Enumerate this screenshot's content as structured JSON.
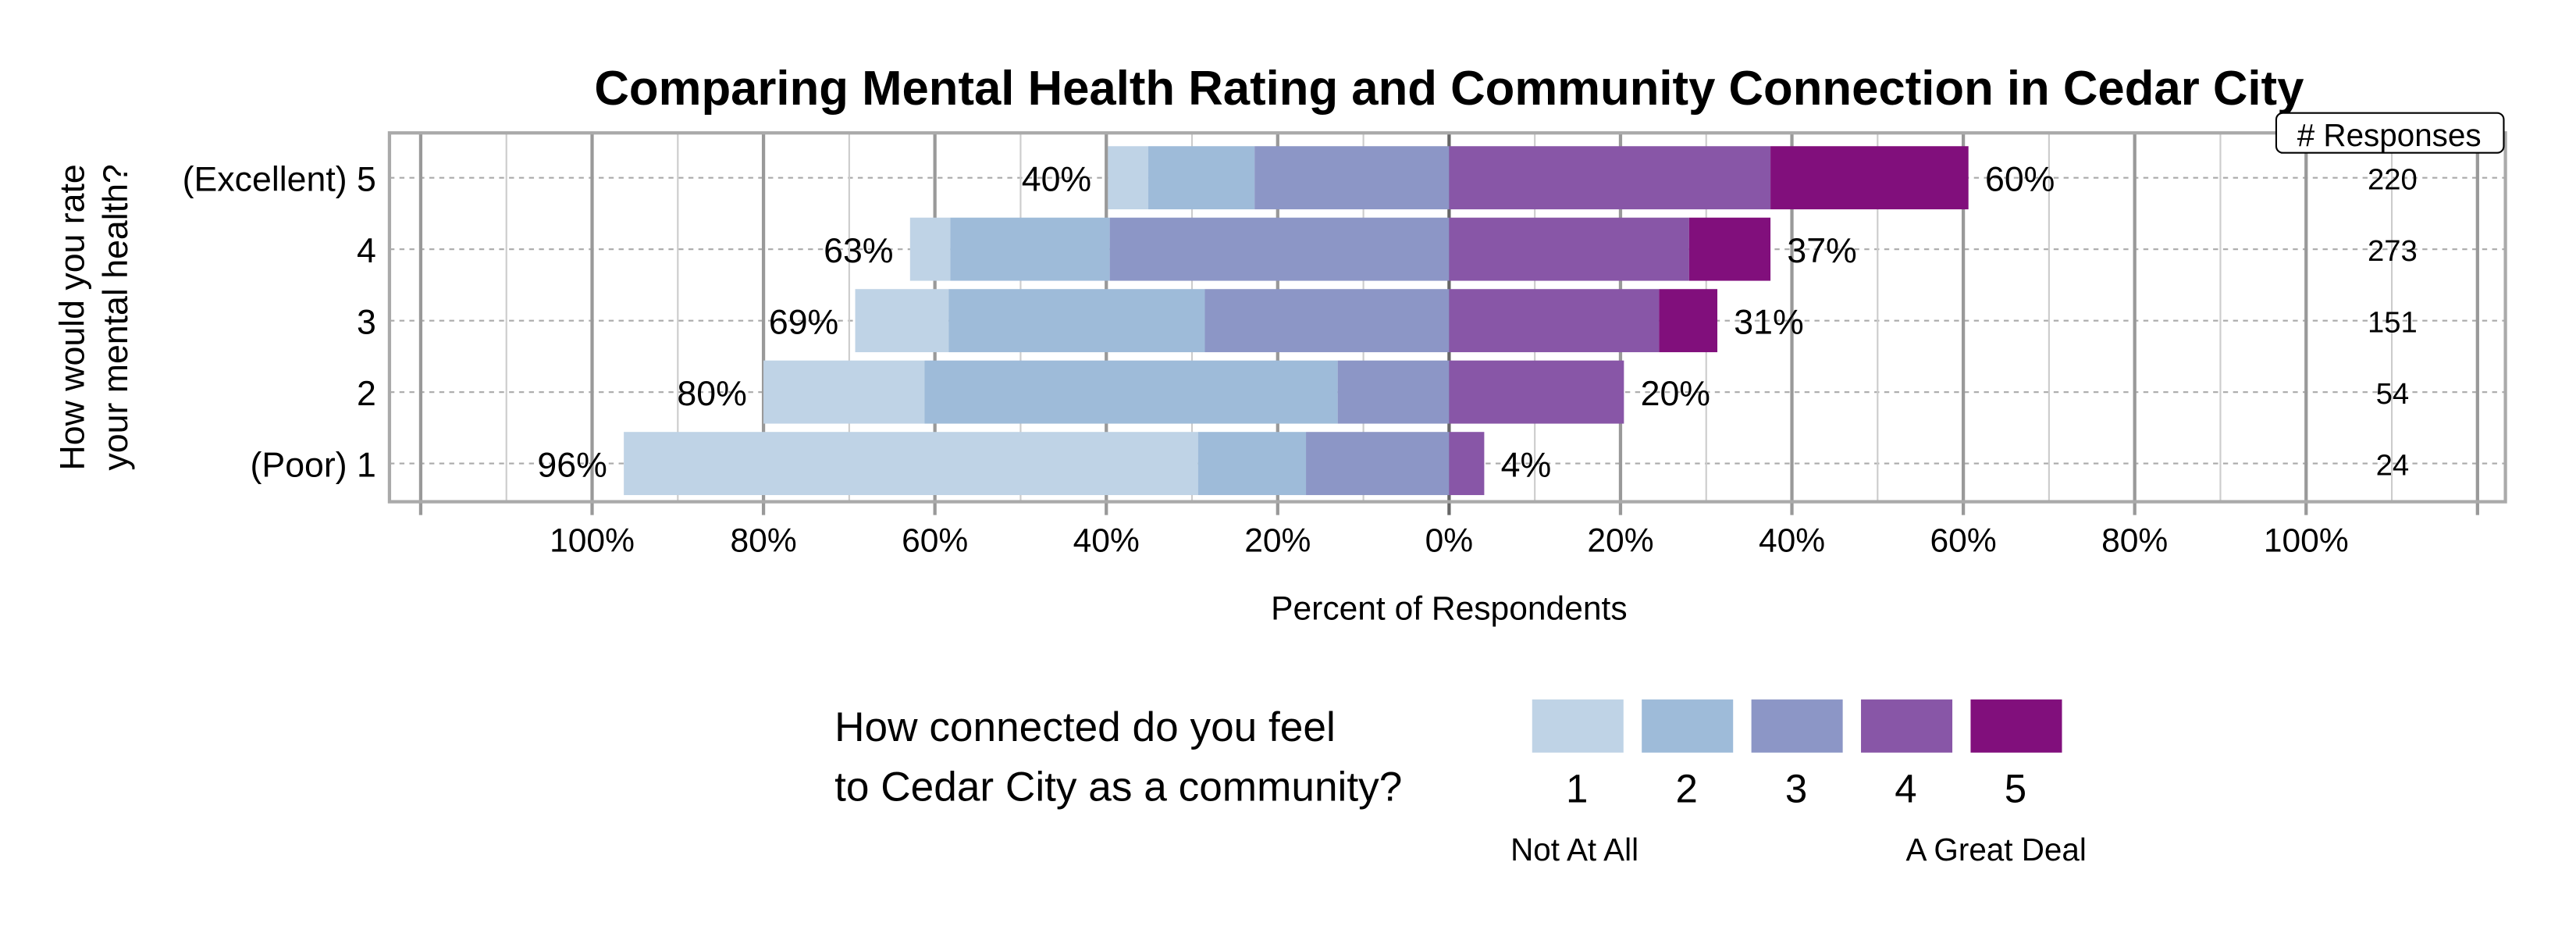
{
  "chart_data": {
    "type": "bar",
    "orientation": "horizontal-diverging-stacked",
    "title": "Comparing Mental Health Rating and Community Connection in Cedar City",
    "xlabel": "Percent of Respondents",
    "ylabel": "How would you rate your mental health?",
    "xlim": [
      -100,
      100
    ],
    "x_ticks": [
      "100%",
      "80%",
      "60%",
      "40%",
      "20%",
      "0%",
      "20%",
      "40%",
      "60%",
      "80%",
      "100%"
    ],
    "grid": true,
    "categories": [
      "(Excellent) 5",
      "4",
      "3",
      "2",
      "(Poor) 1"
    ],
    "series": [
      {
        "name": "1",
        "color": "#bfd3e6",
        "side": "negative",
        "values": [
          4.7,
          4.7,
          10.9,
          18.8,
          67.0
        ]
      },
      {
        "name": "2",
        "color": "#9ebbd9",
        "side": "negative",
        "values": [
          12.4,
          18.6,
          29.9,
          48.2,
          12.6
        ]
      },
      {
        "name": "3",
        "color": "#8c96c6",
        "side": "negative",
        "values": [
          22.7,
          39.6,
          28.5,
          13.0,
          16.7
        ]
      },
      {
        "name": "4",
        "color": "#8856a7",
        "side": "positive",
        "values": [
          37.5,
          28.0,
          24.5,
          20.4,
          4.1
        ]
      },
      {
        "name": "5",
        "color": "#810f7c",
        "side": "positive",
        "values": [
          23.1,
          9.5,
          6.8,
          0,
          0
        ]
      }
    ],
    "left_labels": [
      "40%",
      "63%",
      "69%",
      "80%",
      "96%"
    ],
    "right_labels": [
      "60%",
      "37%",
      "31%",
      "20%",
      "4%"
    ],
    "responses_header": "# Responses",
    "responses": [
      "220",
      "273",
      "151",
      "54",
      "24"
    ],
    "legend": {
      "title_lines": [
        "How connected do you feel",
        "to Cedar City as a community?"
      ],
      "low_label": "Not At All",
      "high_label": "A Great Deal",
      "placement": "bottom"
    }
  }
}
